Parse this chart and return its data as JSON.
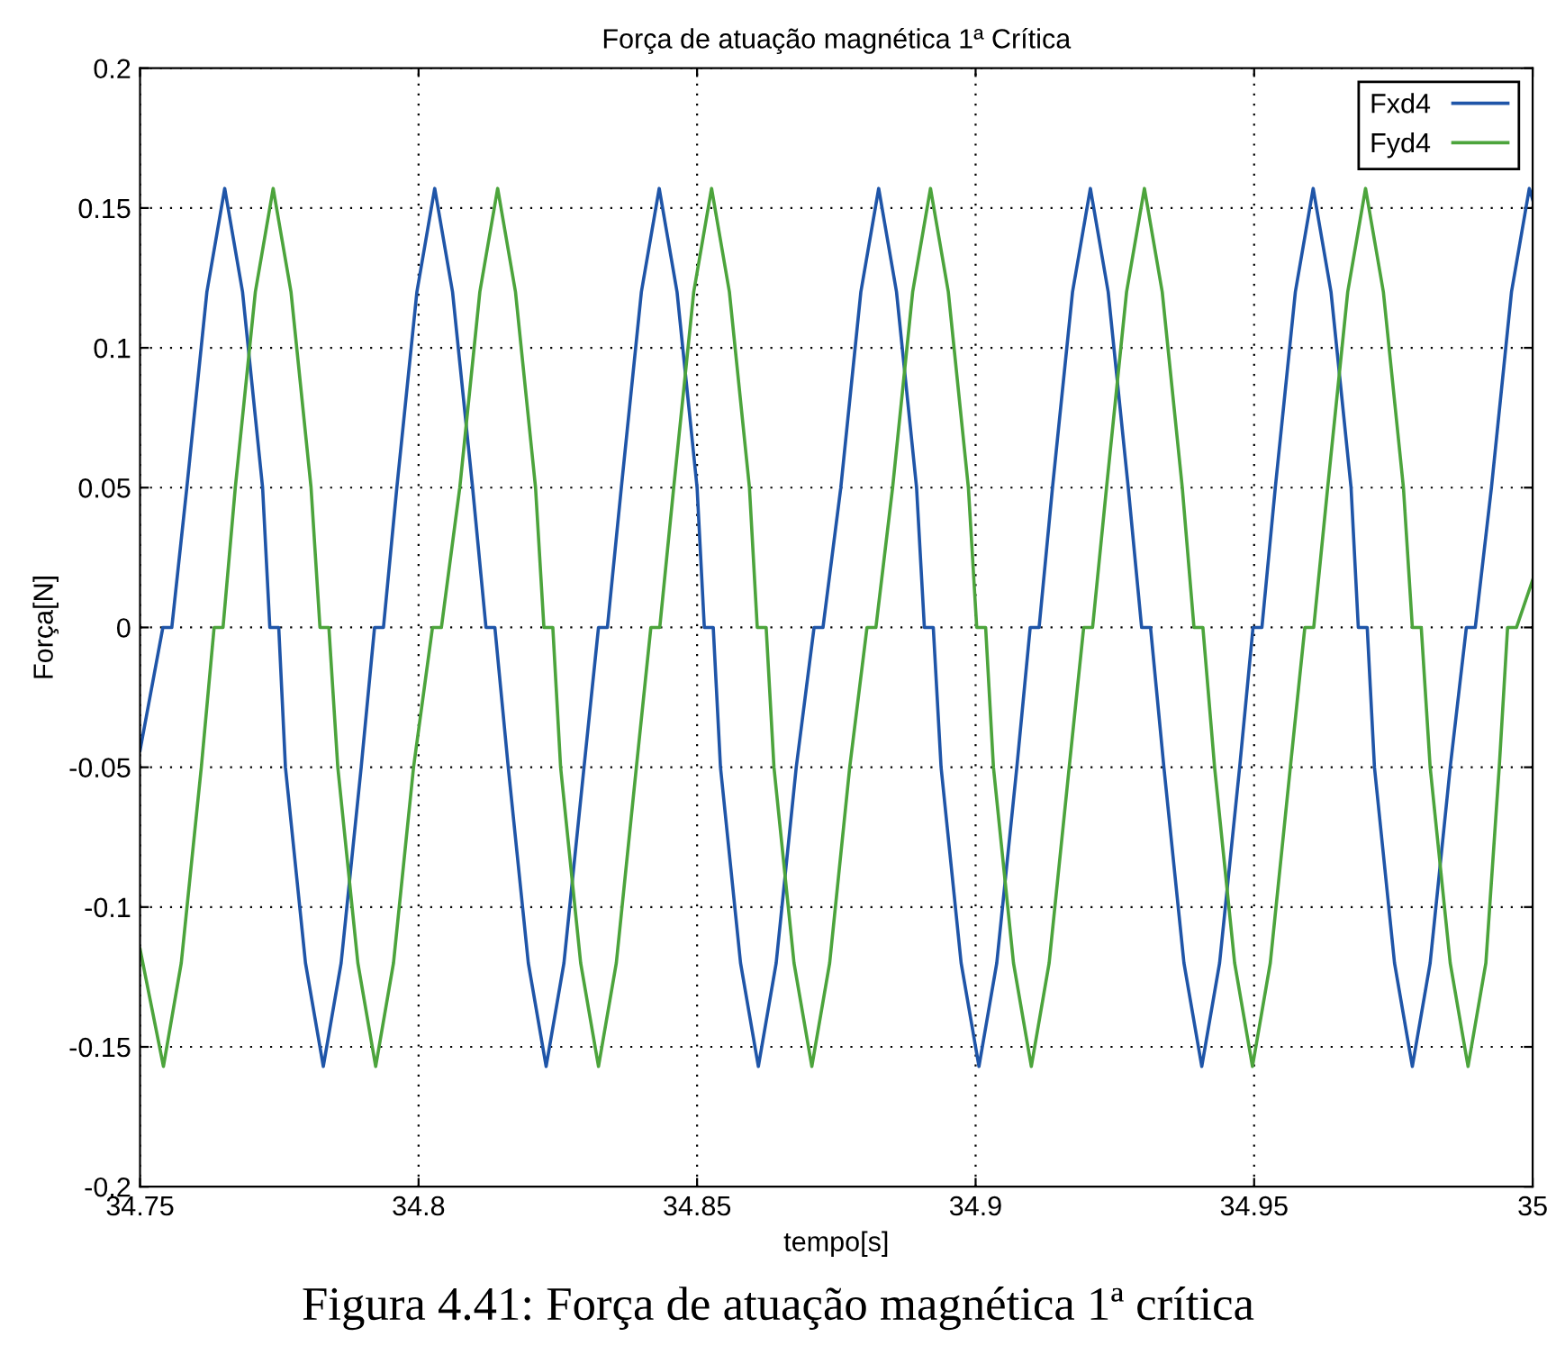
{
  "chart_data": {
    "type": "line",
    "title": "Força de atuação magnética 1ª Crítica",
    "xlabel": "tempo[s]",
    "ylabel": "Força[N]",
    "annotations": [
      "Figura 4.41: Força de atuação magnética 1ª crítica"
    ],
    "xlim": [
      34.75,
      35
    ],
    "ylim": [
      -0.2,
      0.2
    ],
    "xticks": [
      34.75,
      34.8,
      34.85,
      34.9,
      34.95,
      35
    ],
    "yticks": [
      -0.2,
      -0.15,
      -0.1,
      -0.05,
      0,
      0.05,
      0.1,
      0.15,
      0.2
    ],
    "grid": true,
    "legend": "top right",
    "marker": "none",
    "line_style": "solid",
    "series": [
      {
        "name": "Fxd4",
        "color": "#1f55a8",
        "x": [
          34.75,
          34.7541,
          34.7557,
          34.7584,
          34.762,
          34.7652,
          34.7684,
          34.772,
          34.7733,
          34.7749,
          34.7761,
          34.7797,
          34.7829,
          34.7861,
          34.7897,
          34.7921,
          34.7937,
          34.7961,
          34.7997,
          34.8029,
          34.8061,
          34.8097,
          34.8121,
          34.8137,
          34.8161,
          34.8197,
          34.8229,
          34.8261,
          34.8297,
          34.8323,
          34.8339,
          34.8364,
          34.84,
          34.8432,
          34.8464,
          34.85,
          34.8513,
          34.8529,
          34.8542,
          34.8578,
          34.861,
          34.8642,
          34.8678,
          34.871,
          34.8726,
          34.8758,
          34.8794,
          34.8826,
          34.8858,
          34.8894,
          34.8908,
          34.8924,
          34.8938,
          34.8974,
          34.9006,
          34.9038,
          34.9074,
          34.9098,
          34.9114,
          34.9138,
          34.9174,
          34.9206,
          34.9238,
          34.9274,
          34.9298,
          34.9314,
          34.9338,
          34.9374,
          34.9406,
          34.9438,
          34.9474,
          34.9498,
          34.9514,
          34.9538,
          34.9574,
          34.9606,
          34.9638,
          34.9674,
          34.9687,
          34.9703,
          34.9716,
          34.9752,
          34.9784,
          34.9816,
          34.9852,
          34.9881,
          34.9897,
          34.9926,
          34.9962,
          34.9994,
          35.0
        ],
        "values": [
          -0.044,
          0,
          0,
          0.05,
          0.12,
          0.157,
          0.12,
          0.05,
          0,
          0,
          -0.05,
          -0.12,
          -0.157,
          -0.12,
          -0.05,
          0,
          0,
          0.05,
          0.12,
          0.157,
          0.12,
          0.05,
          0,
          0,
          -0.05,
          -0.12,
          -0.157,
          -0.12,
          -0.05,
          0,
          0,
          0.05,
          0.12,
          0.157,
          0.12,
          0.05,
          0,
          0,
          -0.05,
          -0.12,
          -0.157,
          -0.12,
          -0.05,
          0,
          0,
          0.05,
          0.12,
          0.157,
          0.12,
          0.05,
          0,
          0,
          -0.05,
          -0.12,
          -0.157,
          -0.12,
          -0.05,
          0,
          0,
          0.05,
          0.12,
          0.157,
          0.12,
          0.05,
          0,
          0,
          -0.05,
          -0.12,
          -0.157,
          -0.12,
          -0.05,
          0,
          0,
          0.05,
          0.12,
          0.157,
          0.12,
          0.05,
          0,
          0,
          -0.05,
          -0.12,
          -0.157,
          -0.12,
          -0.05,
          0,
          0,
          0.05,
          0.12,
          0.157,
          0.153
        ]
      },
      {
        "name": "Fyd4",
        "color": "#4ca43c",
        "x": [
          34.75,
          34.7542,
          34.7574,
          34.761,
          34.7633,
          34.7649,
          34.7671,
          34.7707,
          34.7739,
          34.7771,
          34.7807,
          34.7823,
          34.7839,
          34.7855,
          34.7891,
          34.7923,
          34.7955,
          34.7991,
          34.8025,
          34.8041,
          34.8074,
          34.811,
          34.8142,
          34.8174,
          34.821,
          34.8225,
          34.8241,
          34.8255,
          34.8291,
          34.8323,
          34.8355,
          34.8391,
          34.8417,
          34.8433,
          34.8458,
          34.8494,
          34.8526,
          34.8558,
          34.8594,
          34.8608,
          34.8624,
          34.8638,
          34.8674,
          34.8706,
          34.8738,
          34.8774,
          34.8805,
          34.8821,
          34.8851,
          34.8887,
          34.8919,
          34.8951,
          34.8987,
          34.9002,
          34.9018,
          34.9032,
          34.9068,
          34.91,
          34.9132,
          34.9168,
          34.9194,
          34.921,
          34.9235,
          34.9271,
          34.9303,
          34.9335,
          34.9371,
          34.9392,
          34.9408,
          34.9429,
          34.9465,
          34.9497,
          34.9529,
          34.9565,
          34.9591,
          34.9607,
          34.9632,
          34.9668,
          34.97,
          34.9732,
          34.9768,
          34.9784,
          34.98,
          34.9816,
          34.9852,
          34.9884,
          34.9916,
          34.994,
          34.9955,
          34.9971,
          35.0
        ],
        "values": [
          -0.115,
          -0.157,
          -0.12,
          -0.05,
          0,
          0,
          0.05,
          0.12,
          0.157,
          0.12,
          0.05,
          0,
          0,
          -0.05,
          -0.12,
          -0.157,
          -0.12,
          -0.05,
          0,
          0,
          0.05,
          0.12,
          0.157,
          0.12,
          0.05,
          0,
          0,
          -0.05,
          -0.12,
          -0.157,
          -0.12,
          -0.05,
          0,
          0,
          0.05,
          0.12,
          0.157,
          0.12,
          0.05,
          0,
          0,
          -0.05,
          -0.12,
          -0.157,
          -0.12,
          -0.05,
          0,
          0,
          0.05,
          0.12,
          0.157,
          0.12,
          0.05,
          0,
          0,
          -0.05,
          -0.12,
          -0.157,
          -0.12,
          -0.05,
          0,
          0,
          0.05,
          0.12,
          0.157,
          0.12,
          0.05,
          0,
          0,
          -0.05,
          -0.12,
          -0.157,
          -0.12,
          -0.05,
          0,
          0,
          0.05,
          0.12,
          0.157,
          0.12,
          0.05,
          0,
          0,
          -0.05,
          -0.12,
          -0.157,
          -0.12,
          -0.05,
          0,
          0,
          0.017
        ]
      }
    ]
  }
}
